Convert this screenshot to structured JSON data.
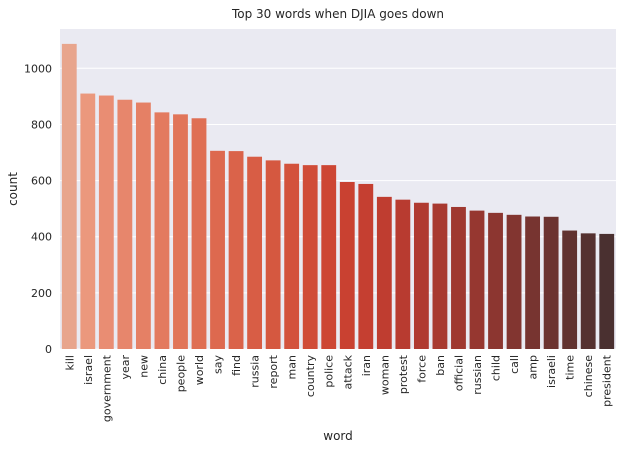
{
  "chart_data": {
    "type": "bar",
    "title": "Top 30 words when DJIA goes down",
    "xlabel": "word",
    "ylabel": "count",
    "ylim": [
      0,
      1140
    ],
    "yticks": [
      0,
      200,
      400,
      600,
      800,
      1000
    ],
    "grid": true,
    "categories": [
      "kill",
      "israel",
      "government",
      "year",
      "new",
      "china",
      "people",
      "world",
      "say",
      "find",
      "russia",
      "report",
      "man",
      "country",
      "police",
      "attack",
      "iran",
      "woman",
      "protest",
      "force",
      "ban",
      "official",
      "russian",
      "child",
      "call",
      "amp",
      "israeli",
      "time",
      "chinese",
      "president"
    ],
    "values": [
      1087,
      910,
      903,
      888,
      878,
      843,
      836,
      822,
      706,
      705,
      685,
      672,
      660,
      655,
      655,
      595,
      588,
      542,
      532,
      521,
      518,
      506,
      493,
      485,
      478,
      472,
      471,
      422,
      412,
      410
    ],
    "colors": [
      "#e8a58d",
      "#eb987d",
      "#e98d73",
      "#e7866c",
      "#e58065",
      "#e37a5f",
      "#e17559",
      "#df6f54",
      "#dd694f",
      "#da634a",
      "#d85d45",
      "#d55840",
      "#d3523c",
      "#d04c38",
      "#cd4634",
      "#c94131",
      "#c53f31",
      "#bf3d30",
      "#b83b30",
      "#b03a30",
      "#a83930",
      "#9f3830",
      "#963730",
      "#8c3630",
      "#823530",
      "#773430",
      "#6c3330",
      "#613230",
      "#553130",
      "#4a3030"
    ]
  }
}
